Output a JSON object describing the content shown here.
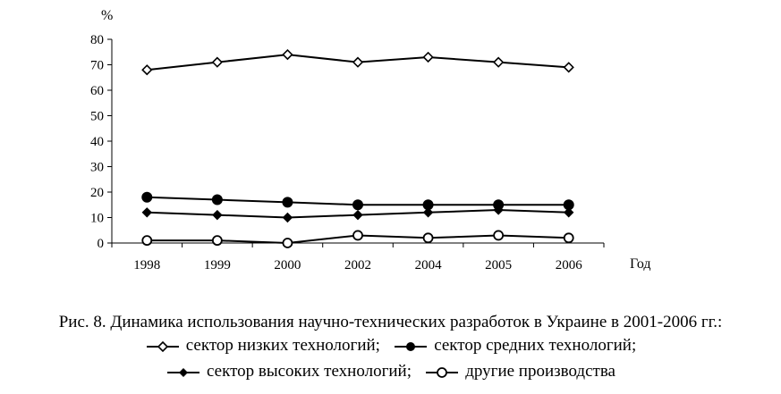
{
  "chart_data": {
    "type": "line",
    "x": [
      "1998",
      "1999",
      "2000",
      "2002",
      "2004",
      "2005",
      "2006"
    ],
    "xlabel": "Год",
    "ylabel": "%",
    "ylim": [
      0,
      80
    ],
    "yticks": [
      0,
      10,
      20,
      30,
      40,
      50,
      60,
      70,
      80
    ],
    "grid": false,
    "series": [
      {
        "name": "сектор низких технологий",
        "marker": "diamond-open",
        "values": [
          68,
          71,
          74,
          71,
          73,
          71,
          69
        ]
      },
      {
        "name": "сектор средних технологий",
        "marker": "circle-filled",
        "values": [
          18,
          17,
          16,
          15,
          15,
          15,
          15
        ]
      },
      {
        "name": "сектор высоких технологий",
        "marker": "diamond-filled",
        "values": [
          12,
          11,
          10,
          11,
          12,
          13,
          12
        ]
      },
      {
        "name": "другие производства",
        "marker": "circle-open",
        "values": [
          1,
          1,
          0,
          3,
          2,
          3,
          2
        ]
      }
    ]
  },
  "caption": {
    "title": "Рис. 8. Динамика использования научно-технических разработок в Украине в 2001-2006 гг.:",
    "separator": ";"
  }
}
